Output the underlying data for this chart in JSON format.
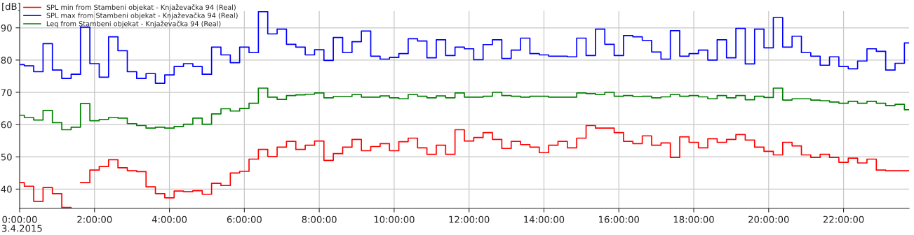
{
  "chart_data": {
    "type": "step",
    "ylabel": "[dB]",
    "annotations": [
      "3.4.2015"
    ],
    "grid": true,
    "legend": "top left",
    "xlim": [
      0,
      23.75
    ],
    "ylim": [
      34,
      95.2
    ],
    "xticks": [
      {
        "value": 0,
        "label": "0:00:00"
      },
      {
        "value": 2,
        "label": "2:00:00"
      },
      {
        "value": 4,
        "label": "4:00:00"
      },
      {
        "value": 6,
        "label": "6:00:00"
      },
      {
        "value": 8,
        "label": "8:00:00"
      },
      {
        "value": 10,
        "label": "10:00:00"
      },
      {
        "value": 12,
        "label": "12:00:00"
      },
      {
        "value": 14,
        "label": "14:00:00"
      },
      {
        "value": 16,
        "label": "16:00:00"
      },
      {
        "value": 18,
        "label": "18:00:00"
      },
      {
        "value": 20,
        "label": "20:00:00"
      },
      {
        "value": 22,
        "label": "22:00:00"
      }
    ],
    "yticks": [
      40,
      50,
      60,
      70,
      80,
      90
    ],
    "x": [
      0,
      0.25,
      0.5,
      0.75,
      1,
      1.25,
      1.5,
      1.75,
      2,
      2.25,
      2.5,
      2.75,
      3,
      3.25,
      3.5,
      3.75,
      4,
      4.25,
      4.5,
      4.75,
      5,
      5.25,
      5.5,
      5.75,
      6,
      6.25,
      6.5,
      6.75,
      7,
      7.25,
      7.5,
      7.75,
      8,
      8.25,
      8.5,
      8.75,
      9,
      9.25,
      9.5,
      9.75,
      10,
      10.25,
      10.5,
      10.75,
      11,
      11.25,
      11.5,
      11.75,
      12,
      12.25,
      12.5,
      12.75,
      13,
      13.25,
      13.5,
      13.75,
      14,
      14.25,
      14.5,
      14.75,
      15,
      15.25,
      15.5,
      15.75,
      16,
      16.25,
      16.5,
      16.75,
      17,
      17.25,
      17.5,
      17.75,
      18,
      18.25,
      18.5,
      18.75,
      19,
      19.25,
      19.5,
      19.75,
      20,
      20.25,
      20.5,
      20.75,
      21,
      21.25,
      21.5,
      21.75,
      22,
      22.25,
      22.5,
      22.75,
      23,
      23.25,
      23.5,
      23.75
    ],
    "series": [
      {
        "name": "SPL min from Stambeni objekat - Knjaževačka 94 (Real)",
        "color": "#ff0000",
        "values": [
          42.0,
          40.9,
          36.2,
          40.5,
          38.6,
          34.3,
          null,
          42.0,
          45.9,
          47.0,
          49.1,
          46.6,
          45.7,
          45.4,
          40.7,
          38.6,
          37.3,
          39.4,
          39.2,
          39.5,
          38.4,
          41.8,
          41.1,
          45.0,
          45.5,
          49.3,
          52.3,
          50.1,
          53.0,
          54.8,
          52.3,
          53.6,
          54.9,
          48.9,
          51.0,
          53.0,
          55.4,
          51.9,
          53.2,
          54.1,
          51.9,
          54.7,
          55.8,
          52.8,
          50.8,
          53.6,
          50.8,
          58.4,
          54.9,
          56.0,
          57.5,
          55.4,
          52.6,
          54.8,
          53.8,
          53.0,
          51.3,
          53.6,
          54.8,
          52.8,
          55.8,
          59.7,
          58.9,
          58.9,
          57.5,
          54.8,
          54.1,
          56.5,
          53.6,
          54.3,
          49.8,
          56.2,
          54.5,
          52.8,
          55.6,
          54.5,
          55.4,
          56.9,
          55.2,
          53.0,
          51.7,
          50.6,
          54.5,
          53.4,
          50.6,
          49.8,
          50.8,
          49.8,
          48.3,
          49.6,
          48.1,
          49.3,
          45.9,
          45.7,
          45.7,
          45.7
        ]
      },
      {
        "name": "SPL max from Stambeni objekat - Knjaževačka 94 (Real)",
        "color": "#0000ff",
        "values": [
          78.6,
          78.2,
          76.4,
          85.1,
          76.9,
          74.3,
          75.6,
          90.2,
          78.9,
          74.7,
          87.2,
          82.9,
          76.4,
          74.3,
          75.8,
          72.8,
          75.4,
          78.0,
          78.9,
          78.0,
          75.6,
          84.0,
          81.6,
          79.2,
          84.0,
          82.3,
          95.0,
          88.1,
          89.6,
          84.9,
          84.0,
          81.6,
          83.2,
          79.9,
          87.0,
          82.3,
          85.7,
          89.0,
          81.2,
          80.3,
          80.8,
          82.0,
          86.6,
          85.9,
          80.7,
          86.3,
          81.4,
          84.0,
          83.5,
          80.1,
          84.8,
          86.3,
          80.5,
          83.1,
          86.8,
          82.0,
          81.6,
          81.2,
          81.2,
          81.0,
          86.8,
          81.4,
          89.6,
          84.9,
          81.4,
          87.6,
          87.2,
          86.1,
          82.5,
          80.3,
          89.1,
          81.2,
          82.0,
          83.1,
          80.0,
          86.3,
          80.7,
          89.8,
          78.8,
          89.6,
          83.8,
          93.2,
          84.0,
          87.4,
          82.3,
          81.2,
          78.4,
          81.0,
          78.0,
          77.3,
          79.7,
          83.5,
          82.7,
          76.9,
          79.0,
          85.3
        ]
      },
      {
        "name": "Leq from Stambeni objekat - Knjaževačka 94 (Real)",
        "color": "#008000",
        "values": [
          62.9,
          62.2,
          61.4,
          64.4,
          60.6,
          58.4,
          59.2,
          66.5,
          61.2,
          61.6,
          62.2,
          62.0,
          60.3,
          59.7,
          58.9,
          59.2,
          58.9,
          59.4,
          60.1,
          62.0,
          60.1,
          63.3,
          64.9,
          64.2,
          65.0,
          66.6,
          71.3,
          68.5,
          67.8,
          69.0,
          69.2,
          69.4,
          69.8,
          68.3,
          68.7,
          68.7,
          69.3,
          68.5,
          68.5,
          68.9,
          68.3,
          68.0,
          69.3,
          68.8,
          68.3,
          68.9,
          68.3,
          69.8,
          68.5,
          68.5,
          68.8,
          70.0,
          69.0,
          68.8,
          68.5,
          68.8,
          68.8,
          68.5,
          68.5,
          68.5,
          69.8,
          69.6,
          69.3,
          70.0,
          68.8,
          69.0,
          68.7,
          68.8,
          68.3,
          68.6,
          69.3,
          68.8,
          69.0,
          68.6,
          68.0,
          69.0,
          68.3,
          69.0,
          67.7,
          68.8,
          68.4,
          71.3,
          67.6,
          68.0,
          68.0,
          67.6,
          67.4,
          67.0,
          66.6,
          67.2,
          66.6,
          67.2,
          66.6,
          65.9,
          66.3,
          64.6
        ]
      }
    ]
  }
}
